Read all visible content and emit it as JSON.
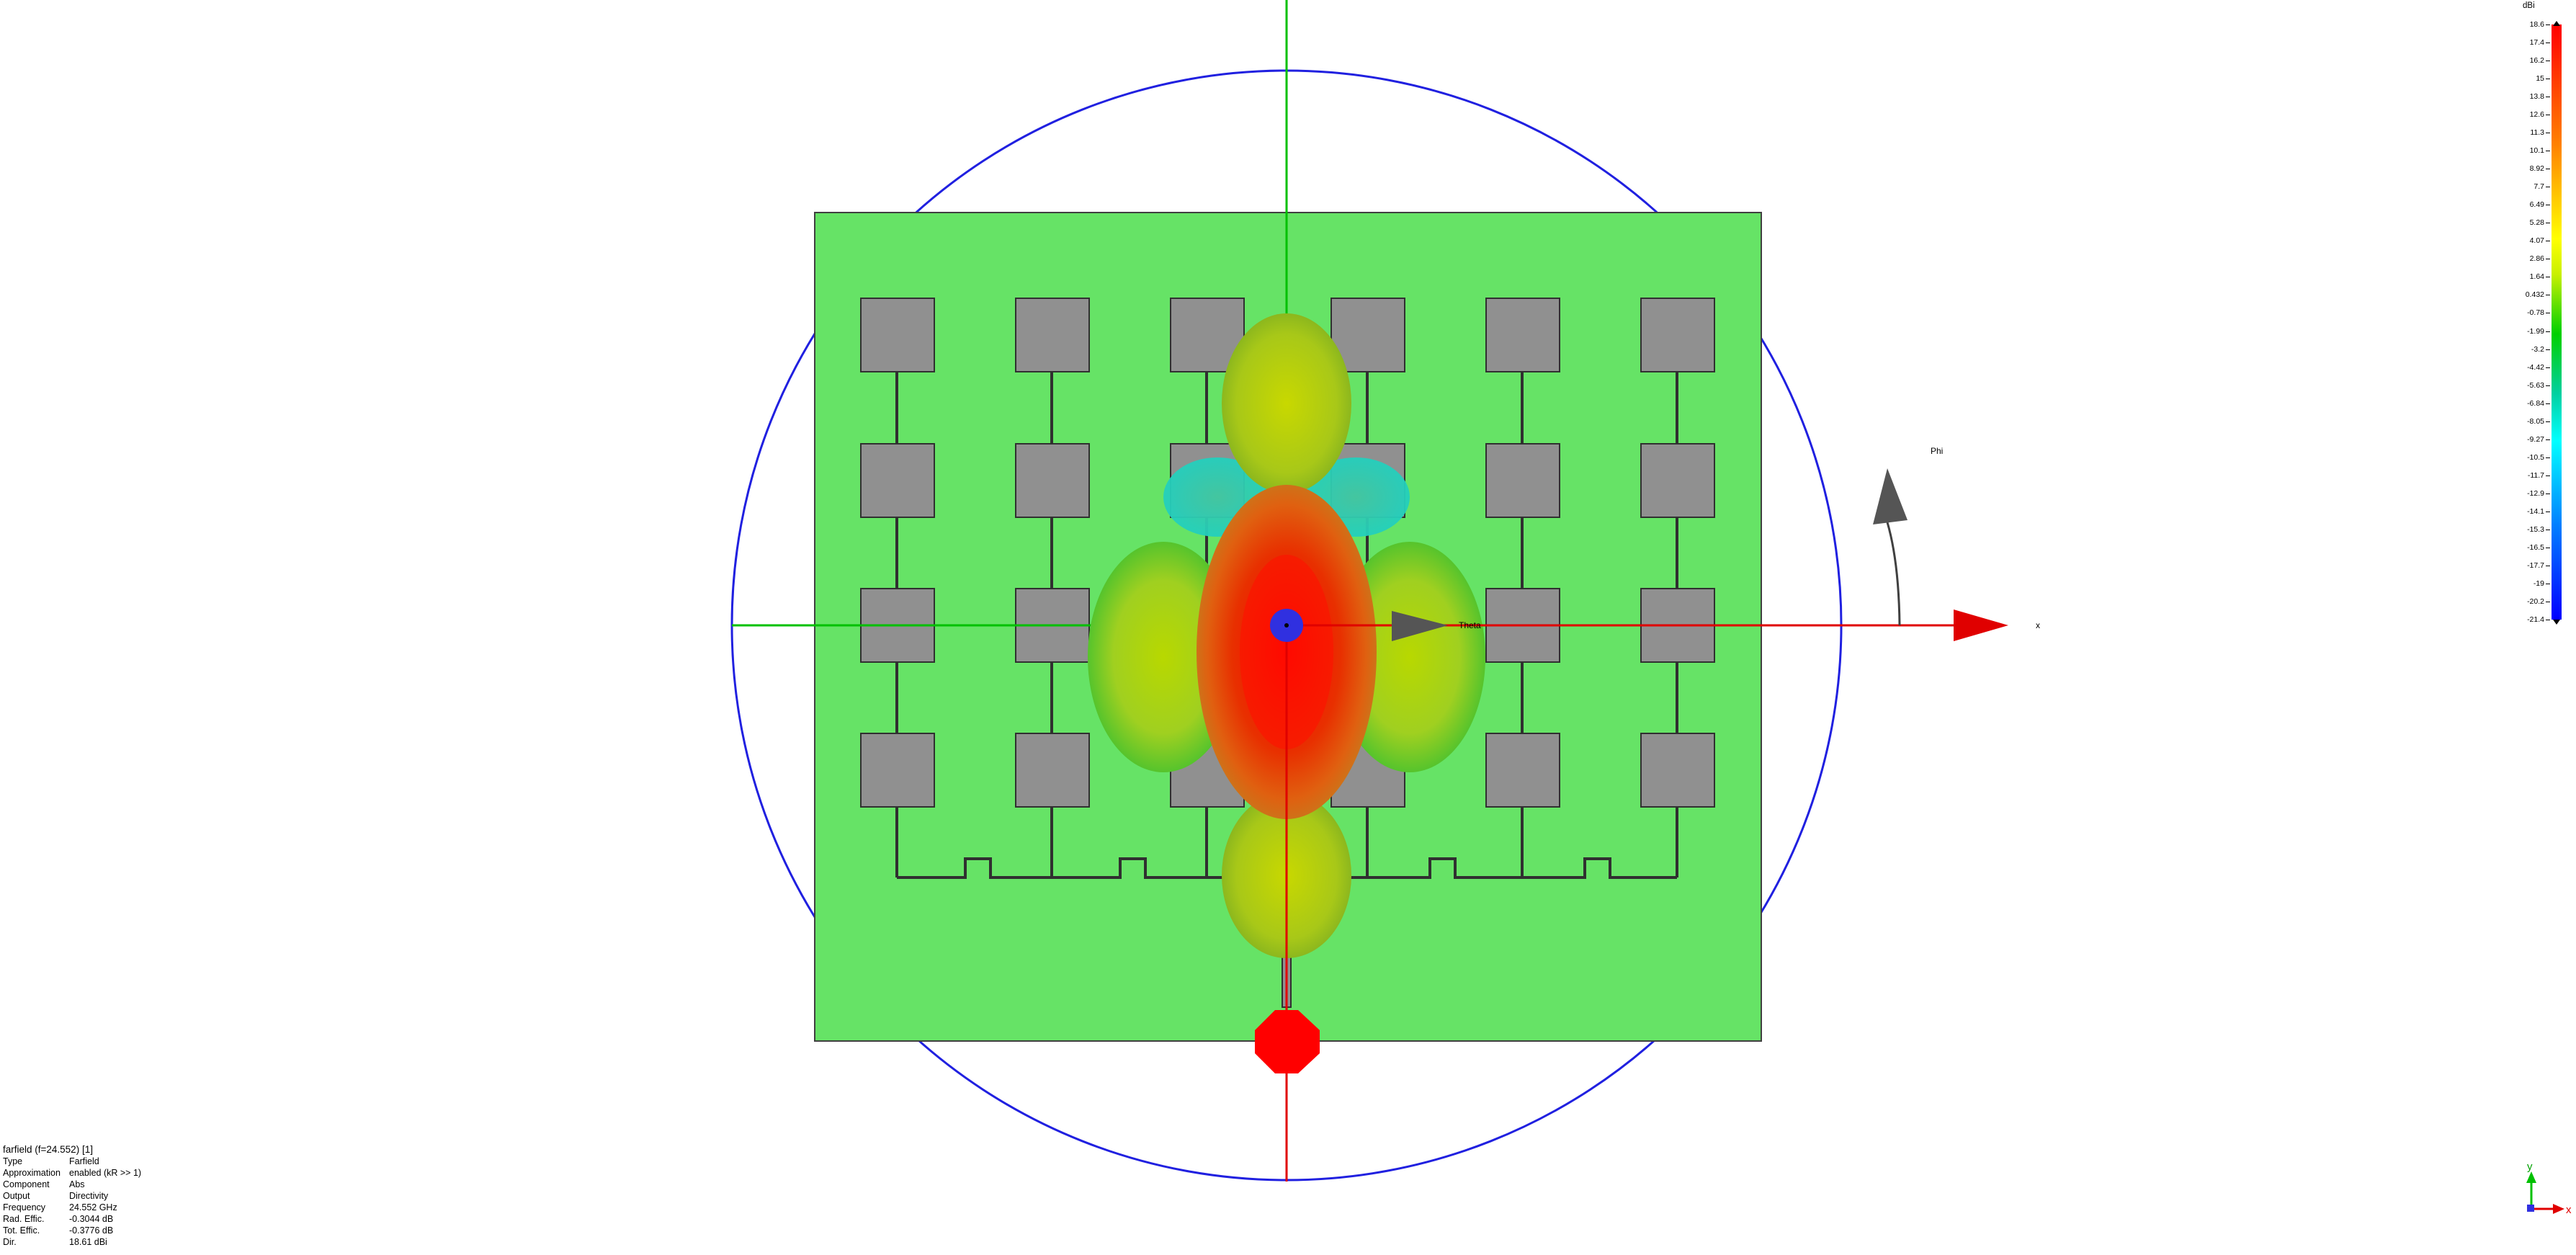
{
  "scene": {
    "labels": {
      "phi": "Phi",
      "theta": "Theta",
      "x_axis": "x"
    },
    "colors": {
      "substrate": "#66e366",
      "patch": "#909090",
      "sphere": "#3030e0",
      "axis_red": "#e00000",
      "axis_green": "#00c000"
    },
    "patch_grid": {
      "rows": 4,
      "cols": 6
    }
  },
  "info": {
    "title": "farfield (f=24.552) [1]",
    "rows": [
      {
        "k": "Type",
        "v": "Farfield"
      },
      {
        "k": "Approximation",
        "v": "enabled (kR >> 1)"
      },
      {
        "k": "Component",
        "v": "Abs"
      },
      {
        "k": "Output",
        "v": "Directivity"
      },
      {
        "k": "Frequency",
        "v": "24.552 GHz"
      },
      {
        "k": "Rad. Effic.",
        "v": "-0.3044 dB"
      },
      {
        "k": "Tot. Effic.",
        "v": "-0.3776 dB"
      },
      {
        "k": "Dir.",
        "v": "18.61 dBi"
      }
    ]
  },
  "colorbar": {
    "unit": "dBi",
    "ticks": [
      "18.6",
      "17.4",
      "16.2",
      "15",
      "13.8",
      "12.6",
      "11.3",
      "10.1",
      "8.92",
      "7.7",
      "6.49",
      "5.28",
      "4.07",
      "2.86",
      "1.64",
      "0.432",
      "-0.78",
      "-1.99",
      "-3.2",
      "-4.42",
      "-5.63",
      "-6.84",
      "-8.05",
      "-9.27",
      "-10.5",
      "-11.7",
      "-12.9",
      "-14.1",
      "-15.3",
      "-16.5",
      "-17.7",
      "-19",
      "-20.2",
      "-21.4"
    ]
  },
  "axes_triad": {
    "y": "y",
    "x": "x"
  }
}
